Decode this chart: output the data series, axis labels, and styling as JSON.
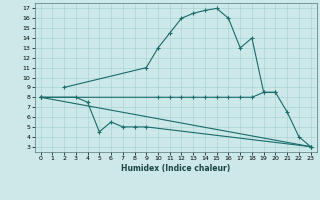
{
  "xlabel": "Humidex (Indice chaleur)",
  "bg_color": "#cce8e8",
  "grid_color": "#aad4d4",
  "line_color": "#1a6b6b",
  "xlim": [
    -0.5,
    23.5
  ],
  "ylim": [
    2.5,
    17.5
  ],
  "xticks": [
    0,
    1,
    2,
    3,
    4,
    5,
    6,
    7,
    8,
    9,
    10,
    11,
    12,
    13,
    14,
    15,
    16,
    17,
    18,
    19,
    20,
    21,
    22,
    23
  ],
  "yticks": [
    3,
    4,
    5,
    6,
    7,
    8,
    9,
    10,
    11,
    12,
    13,
    14,
    15,
    16,
    17
  ],
  "series1_x": [
    0,
    23
  ],
  "series1_y": [
    8,
    3
  ],
  "series2_x": [
    0,
    3,
    4,
    5,
    6,
    7,
    8,
    9,
    23
  ],
  "series2_y": [
    8,
    8,
    7.5,
    4.5,
    5.5,
    5,
    5,
    5,
    3
  ],
  "series3_x": [
    0,
    10,
    11,
    12,
    13,
    14,
    15,
    16,
    17,
    18,
    19,
    20
  ],
  "series3_y": [
    8,
    8,
    8,
    8,
    8,
    8,
    8,
    8,
    8,
    8,
    8.5,
    8.5
  ],
  "series4_x": [
    2,
    9,
    10,
    11,
    12,
    13,
    14,
    15,
    16,
    17,
    18,
    19,
    20,
    21,
    22,
    23
  ],
  "series4_y": [
    9,
    11,
    13,
    14.5,
    16,
    16.5,
    16.8,
    17,
    16,
    13,
    14,
    8.5,
    8.5,
    6.5,
    4,
    3
  ]
}
